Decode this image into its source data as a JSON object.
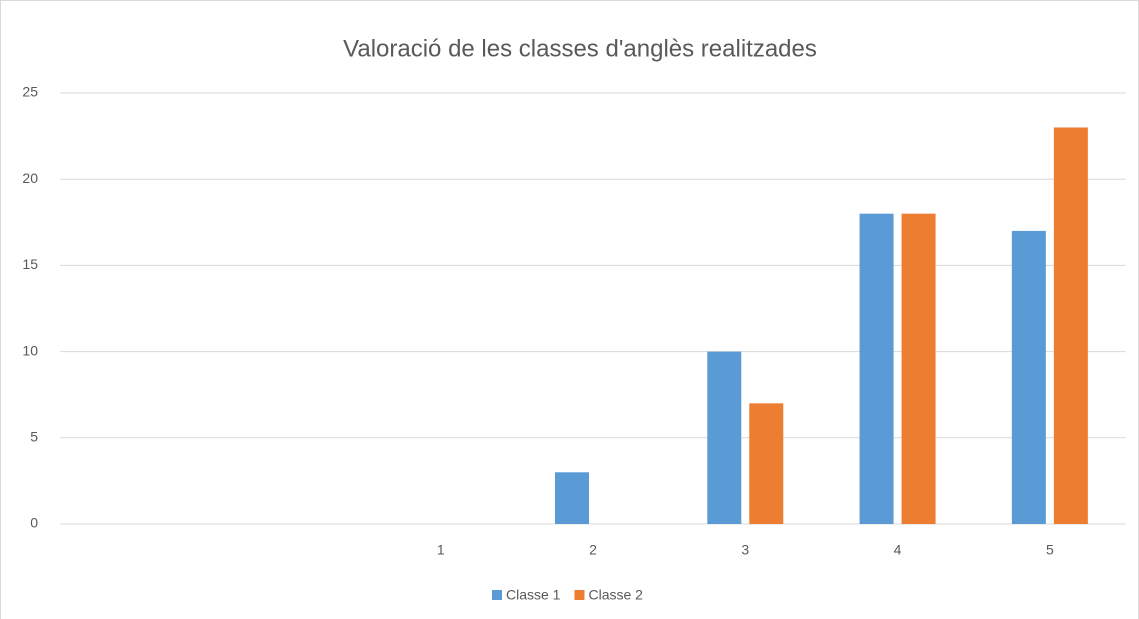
{
  "chart_data": {
    "type": "bar",
    "title": "Valoració de les classes d'anglès realitzades",
    "categories": [
      null,
      null,
      "1",
      "2",
      "3",
      "4",
      "5"
    ],
    "series": [
      {
        "name": "Classe 1",
        "color": "#5b9bd5",
        "values": [
          null,
          null,
          0,
          3,
          10,
          18,
          17
        ]
      },
      {
        "name": "Classe 2",
        "color": "#ed7d31",
        "values": [
          null,
          null,
          0,
          0,
          7,
          18,
          23
        ]
      }
    ],
    "ylim": [
      0,
      25
    ],
    "yticks": [
      0,
      5,
      10,
      15,
      20,
      25
    ],
    "grid": true,
    "legend": "bottom"
  }
}
